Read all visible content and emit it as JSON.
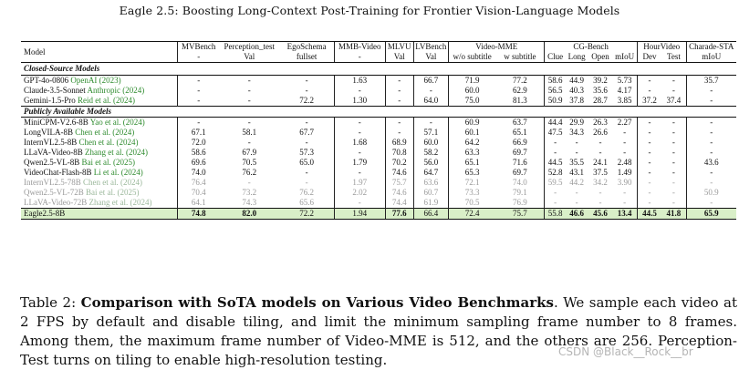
{
  "header_title": "Eagle 2.5: Boosting Long-Context Post-Training for Frontier Vision-Language Models",
  "table": {
    "headers": {
      "model": "Model",
      "mvbench": [
        "MVBench",
        "-"
      ],
      "perception": [
        "Perception_test",
        "Val"
      ],
      "egoschema": [
        "EgoSchema",
        "fullset"
      ],
      "mmbvideo": [
        "MMB-Video",
        "-"
      ],
      "mlvu": [
        "MLVU",
        "Val"
      ],
      "lvbench": [
        "LVBench",
        "Val"
      ],
      "videomme": "Video-MME",
      "videomme_sub": [
        "w/o subtitle",
        "w subtitle"
      ],
      "cgbench": "CG-Bench",
      "cgbench_sub": [
        "Clue",
        "Long",
        "Open",
        "mIoU"
      ],
      "hourvideo": "HourVideo",
      "hourvideo_sub": [
        "Dev",
        "Test"
      ],
      "charade": [
        "Charade-STA",
        "mIoU"
      ]
    },
    "section_closed": "Closed-Source Models",
    "section_public": "Publicly Available Models",
    "closed_rows": [
      {
        "name": "GPT-4o-0806",
        "cite": "OpenAI (2023)",
        "vals": [
          "-",
          "-",
          "-",
          "1.63",
          "-",
          "66.7",
          "71.9",
          "77.2",
          "58.6",
          "44.9",
          "39.2",
          "5.73",
          "-",
          "-",
          "35.7"
        ]
      },
      {
        "name": "Claude-3.5-Sonnet",
        "cite": "Anthropic (2024)",
        "vals": [
          "-",
          "-",
          "-",
          "-",
          "-",
          "-",
          "60.0",
          "62.9",
          "56.5",
          "40.3",
          "35.6",
          "4.17",
          "-",
          "-",
          "-"
        ]
      },
      {
        "name": "Gemini-1.5-Pro",
        "cite": "Reid et al. (2024)",
        "vals": [
          "-",
          "-",
          "72.2",
          "1.30",
          "-",
          "64.0",
          "75.0",
          "81.3",
          "50.9",
          "37.8",
          "28.7",
          "3.85",
          "37.2",
          "37.4",
          "-"
        ]
      }
    ],
    "public_rows": [
      {
        "name": "MiniCPM-V2.6-8B",
        "cite": "Yao et al. (2024)",
        "vals": [
          "-",
          "-",
          "-",
          "-",
          "-",
          "-",
          "60.9",
          "63.7",
          "44.4",
          "29.9",
          "26.3",
          "2.27",
          "-",
          "-",
          "-"
        ]
      },
      {
        "name": "LongVILA-8B",
        "cite": "Chen et al. (2024)",
        "vals": [
          "67.1",
          "58.1",
          "67.7",
          "-",
          "-",
          "57.1",
          "60.1",
          "65.1",
          "47.5",
          "34.3",
          "26.6",
          "-",
          "-",
          "-",
          "-"
        ]
      },
      {
        "name": "InternVL2.5-8B",
        "cite": "Chen et al. (2024)",
        "vals": [
          "72.0",
          "-",
          "-",
          "1.68",
          "68.9",
          "60.0",
          "64.2",
          "66.9",
          "-",
          "-",
          "-",
          "-",
          "-",
          "-",
          "-"
        ]
      },
      {
        "name": "LLaVA-Video-8B",
        "cite": "Zhang et al. (2024)",
        "vals": [
          "58.6",
          "67.9",
          "57.3",
          "-",
          "70.8",
          "58.2",
          "63.3",
          "69.7",
          "-",
          "-",
          "-",
          "-",
          "-",
          "-",
          "-"
        ]
      },
      {
        "name": "Qwen2.5-VL-8B",
        "cite": "Bai et al. (2025)",
        "vals": [
          "69.6",
          "70.5",
          "65.0",
          "1.79",
          "70.2",
          "56.0",
          "65.1",
          "71.6",
          "44.5",
          "35.5",
          "24.1",
          "2.48",
          "-",
          "-",
          "43.6"
        ]
      },
      {
        "name": "VideoChat-Flash-8B",
        "cite": "Li et al. (2024)",
        "vals": [
          "74.0",
          "76.2",
          "-",
          "-",
          "74.6",
          "64.7",
          "65.3",
          "69.7",
          "52.8",
          "43.1",
          "37.5",
          "1.49",
          "-",
          "-",
          "-"
        ]
      },
      {
        "name": "InternVL2.5-78B",
        "cite": "Chen et al. (2024)",
        "gray": true,
        "vals": [
          "76.4",
          "-",
          "-",
          "1.97",
          "75.7",
          "63.6",
          "72.1",
          "74.0",
          "59.5",
          "44.2",
          "34.2",
          "3.90",
          "-",
          "-",
          "-"
        ]
      },
      {
        "name": "Qwen2.5-VL-72B",
        "cite": "Bai et al. (2025)",
        "gray": true,
        "vals": [
          "70.4",
          "73.2",
          "76.2",
          "2.02",
          "74.6",
          "60.7",
          "73.3",
          "79.1",
          "-",
          "-",
          "-",
          "-",
          "-",
          "-",
          "50.9"
        ]
      },
      {
        "name": "LLaVA-Video-72B",
        "cite": "Zhang et al. (2024)",
        "gray": true,
        "vals": [
          "64.1",
          "74.3",
          "65.6",
          "-",
          "74.4",
          "61.9",
          "70.5",
          "76.9",
          "-",
          "-",
          "-",
          "-",
          "-",
          "-",
          "-"
        ]
      }
    ],
    "ours": {
      "name": "Eagle2.5-8B",
      "vals": [
        "74.8",
        "82.0",
        "72.2",
        "1.94",
        "77.6",
        "66.4",
        "72.4",
        "75.7",
        "55.8",
        "46.6",
        "45.6",
        "13.4",
        "44.5",
        "41.8",
        "65.9"
      ],
      "bold": [
        0,
        1,
        4,
        9,
        10,
        11,
        12,
        13,
        14
      ]
    }
  },
  "caption": {
    "lead": "Table 2: ",
    "bold": "Comparison with SoTA models on Various Video Benchmarks",
    "text": ". We sample each video at 2 FPS by default and disable tiling, and limit the minimum sampling frame number to 8 frames. Among them, the maximum frame number of Video-MME is 512, and the others are 256. Perception-Test turns on tiling to enable high-resolution testing."
  },
  "watermark": "CSDN @Black__Rock__br"
}
